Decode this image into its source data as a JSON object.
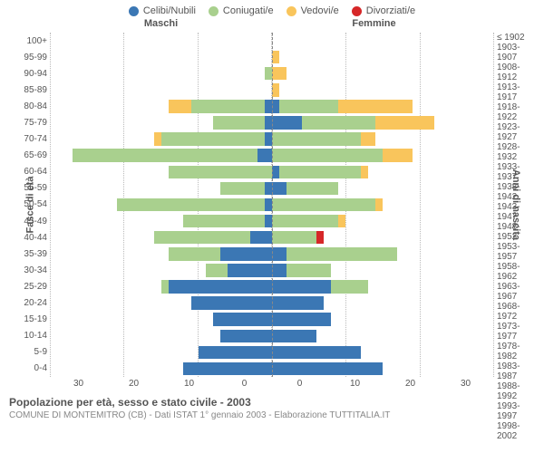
{
  "legend": [
    {
      "label": "Celibi/Nubili",
      "color": "#3b77b4"
    },
    {
      "label": "Coniugati/e",
      "color": "#a9d08e"
    },
    {
      "label": "Vedovi/e",
      "color": "#f9c55c"
    },
    {
      "label": "Divorziati/e",
      "color": "#d62728"
    }
  ],
  "gender": {
    "left": "Maschi",
    "right": "Femmine"
  },
  "y_title_left": "Fasce di età",
  "y_title_right": "Anni di nascita",
  "footer": {
    "title": "Popolazione per età, sesso e stato civile - 2003",
    "subtitle": "COMUNE DI MONTEMITRO (CB) - Dati ISTAT 1° gennaio 2003 - Elaborazione TUTTITALIA.IT"
  },
  "age_groups": [
    "100+",
    "95-99",
    "90-94",
    "85-89",
    "80-84",
    "75-79",
    "70-74",
    "65-69",
    "60-64",
    "55-59",
    "50-54",
    "45-49",
    "40-44",
    "35-39",
    "30-34",
    "25-29",
    "20-24",
    "15-19",
    "10-14",
    "5-9",
    "0-4"
  ],
  "birth_years": [
    "≤ 1902",
    "1903-1907",
    "1908-1912",
    "1913-1917",
    "1918-1922",
    "1923-1927",
    "1928-1932",
    "1933-1937",
    "1938-1942",
    "1943-1947",
    "1948-1952",
    "1953-1957",
    "1958-1962",
    "1963-1967",
    "1968-1972",
    "1973-1977",
    "1978-1982",
    "1983-1987",
    "1988-1992",
    "1993-1997",
    "1998-2002"
  ],
  "x_max": 30,
  "x_ticks_left": [
    "30",
    "20",
    "10",
    "0"
  ],
  "x_ticks_right": [
    "0",
    "10",
    "20",
    "30"
  ],
  "grid_positions": [
    0,
    10,
    20,
    30
  ],
  "colors": {
    "single": "#3b77b4",
    "married": "#a9d08e",
    "widowed": "#f9c55c",
    "divorced": "#d62728",
    "grid": "#bbbbbb",
    "centerline": "#888888",
    "bg": "#ffffff",
    "text": "#555555"
  },
  "fonts": {
    "legend": 11,
    "axis": 10,
    "gender": 11,
    "title": 12,
    "subtitle": 10
  },
  "rows": [
    {
      "m": {
        "s": 0,
        "c": 0,
        "w": 0,
        "d": 0
      },
      "f": {
        "s": 0,
        "c": 0,
        "w": 0,
        "d": 0
      }
    },
    {
      "m": {
        "s": 0,
        "c": 0,
        "w": 0,
        "d": 0
      },
      "f": {
        "s": 0,
        "c": 0,
        "w": 1,
        "d": 0
      }
    },
    {
      "m": {
        "s": 0,
        "c": 1,
        "w": 0,
        "d": 0
      },
      "f": {
        "s": 0,
        "c": 0,
        "w": 2,
        "d": 0
      }
    },
    {
      "m": {
        "s": 0,
        "c": 0,
        "w": 0,
        "d": 0
      },
      "f": {
        "s": 0,
        "c": 0,
        "w": 1,
        "d": 0
      }
    },
    {
      "m": {
        "s": 1,
        "c": 10,
        "w": 3,
        "d": 0
      },
      "f": {
        "s": 1,
        "c": 8,
        "w": 10,
        "d": 0
      }
    },
    {
      "m": {
        "s": 1,
        "c": 7,
        "w": 0,
        "d": 0
      },
      "f": {
        "s": 4,
        "c": 10,
        "w": 8,
        "d": 0
      }
    },
    {
      "m": {
        "s": 1,
        "c": 14,
        "w": 1,
        "d": 0
      },
      "f": {
        "s": 0,
        "c": 12,
        "w": 2,
        "d": 0
      }
    },
    {
      "m": {
        "s": 2,
        "c": 25,
        "w": 0,
        "d": 0
      },
      "f": {
        "s": 0,
        "c": 15,
        "w": 4,
        "d": 0
      }
    },
    {
      "m": {
        "s": 0,
        "c": 14,
        "w": 0,
        "d": 0
      },
      "f": {
        "s": 1,
        "c": 11,
        "w": 1,
        "d": 0
      }
    },
    {
      "m": {
        "s": 1,
        "c": 6,
        "w": 0,
        "d": 0
      },
      "f": {
        "s": 2,
        "c": 7,
        "w": 0,
        "d": 0
      }
    },
    {
      "m": {
        "s": 1,
        "c": 20,
        "w": 0,
        "d": 0
      },
      "f": {
        "s": 0,
        "c": 14,
        "w": 1,
        "d": 0
      }
    },
    {
      "m": {
        "s": 1,
        "c": 11,
        "w": 0,
        "d": 0
      },
      "f": {
        "s": 0,
        "c": 9,
        "w": 1,
        "d": 0
      }
    },
    {
      "m": {
        "s": 3,
        "c": 13,
        "w": 0,
        "d": 0
      },
      "f": {
        "s": 0,
        "c": 6,
        "w": 0,
        "d": 1
      }
    },
    {
      "m": {
        "s": 7,
        "c": 7,
        "w": 0,
        "d": 0
      },
      "f": {
        "s": 2,
        "c": 15,
        "w": 0,
        "d": 0
      }
    },
    {
      "m": {
        "s": 6,
        "c": 3,
        "w": 0,
        "d": 0
      },
      "f": {
        "s": 2,
        "c": 6,
        "w": 0,
        "d": 0
      }
    },
    {
      "m": {
        "s": 14,
        "c": 1,
        "w": 0,
        "d": 0
      },
      "f": {
        "s": 8,
        "c": 5,
        "w": 0,
        "d": 0
      }
    },
    {
      "m": {
        "s": 11,
        "c": 0,
        "w": 0,
        "d": 0
      },
      "f": {
        "s": 7,
        "c": 0,
        "w": 0,
        "d": 0
      }
    },
    {
      "m": {
        "s": 8,
        "c": 0,
        "w": 0,
        "d": 0
      },
      "f": {
        "s": 8,
        "c": 0,
        "w": 0,
        "d": 0
      }
    },
    {
      "m": {
        "s": 7,
        "c": 0,
        "w": 0,
        "d": 0
      },
      "f": {
        "s": 6,
        "c": 0,
        "w": 0,
        "d": 0
      }
    },
    {
      "m": {
        "s": 10,
        "c": 0,
        "w": 0,
        "d": 0
      },
      "f": {
        "s": 12,
        "c": 0,
        "w": 0,
        "d": 0
      }
    },
    {
      "m": {
        "s": 12,
        "c": 0,
        "w": 0,
        "d": 0
      },
      "f": {
        "s": 15,
        "c": 0,
        "w": 0,
        "d": 0
      }
    }
  ]
}
